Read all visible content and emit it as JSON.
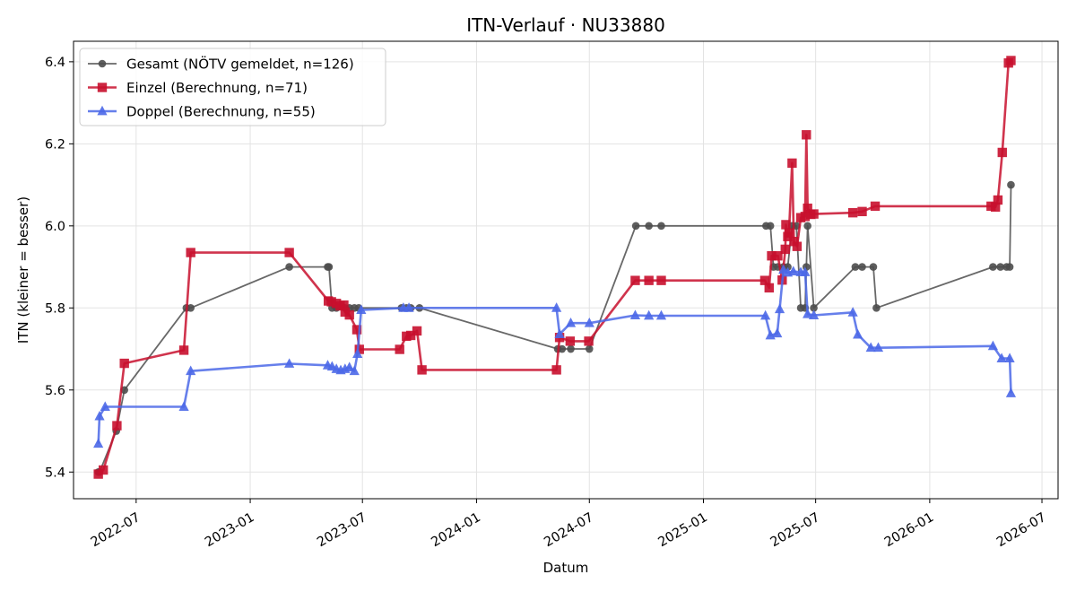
{
  "chart_data": {
    "type": "line",
    "title": "ITN-Verlauf · NU33880",
    "xlabel": "Datum",
    "ylabel": "ITN  (kleiner = besser)",
    "x_axis_type": "date",
    "xlim": [
      "2022-03-22",
      "2026-07-27"
    ],
    "ylim": [
      5.335,
      6.45
    ],
    "x_ticks": [
      "2022-07-01",
      "2023-01-01",
      "2023-07-01",
      "2024-01-01",
      "2024-07-01",
      "2025-01-01",
      "2025-07-01",
      "2026-01-01",
      "2026-07-01"
    ],
    "x_tick_labels": [
      "2022-07",
      "2023-01",
      "2023-07",
      "2024-01",
      "2024-07",
      "2025-01",
      "2025-07",
      "2026-01",
      "2026-07"
    ],
    "y_ticks": [
      5.4,
      5.6,
      5.8,
      6.0,
      6.2,
      6.4
    ],
    "y_tick_labels": [
      "5.4",
      "5.6",
      "5.8",
      "6.0",
      "6.2",
      "6.4"
    ],
    "grid": true,
    "legend_position": "top-left",
    "series": [
      {
        "name": "Gesamt (NÖTV gemeldet, n=126)",
        "color": "#4d4d4d",
        "marker": "circle",
        "line_width": 1.8,
        "points": [
          [
            "2022-05-01",
            5.4
          ],
          [
            "2022-05-03",
            5.4
          ],
          [
            "2022-05-30",
            5.5
          ],
          [
            "2022-06-12",
            5.6
          ],
          [
            "2022-09-20",
            5.8
          ],
          [
            "2022-09-27",
            5.8
          ],
          [
            "2023-03-05",
            5.9
          ],
          [
            "2023-05-06",
            5.9
          ],
          [
            "2023-05-08",
            5.9
          ],
          [
            "2023-05-13",
            5.8
          ],
          [
            "2023-05-20",
            5.8
          ],
          [
            "2023-06-03",
            5.8
          ],
          [
            "2023-06-10",
            5.8
          ],
          [
            "2023-06-18",
            5.8
          ],
          [
            "2023-06-25",
            5.8
          ],
          [
            "2023-09-02",
            5.8
          ],
          [
            "2023-09-10",
            5.8
          ],
          [
            "2023-09-17",
            5.8
          ],
          [
            "2023-10-01",
            5.8
          ],
          [
            "2024-05-11",
            5.7
          ],
          [
            "2024-05-18",
            5.7
          ],
          [
            "2024-06-01",
            5.7
          ],
          [
            "2024-07-01",
            5.7
          ],
          [
            "2024-09-14",
            6.0
          ],
          [
            "2024-10-05",
            6.0
          ],
          [
            "2024-10-25",
            6.0
          ],
          [
            "2025-04-12",
            6.0
          ],
          [
            "2025-04-19",
            6.0
          ],
          [
            "2025-04-24",
            5.9
          ],
          [
            "2025-05-01",
            5.9
          ],
          [
            "2025-05-10",
            5.9
          ],
          [
            "2025-05-17",
            5.9
          ],
          [
            "2025-05-24",
            6.0
          ],
          [
            "2025-05-31",
            6.0
          ],
          [
            "2025-06-07",
            5.8
          ],
          [
            "2025-06-14",
            5.8
          ],
          [
            "2025-06-16",
            5.9
          ],
          [
            "2025-06-18",
            6.0
          ],
          [
            "2025-06-28",
            5.8
          ],
          [
            "2025-09-03",
            5.9
          ],
          [
            "2025-09-14",
            5.9
          ],
          [
            "2025-10-02",
            5.9
          ],
          [
            "2025-10-07",
            5.8
          ],
          [
            "2026-04-13",
            5.9
          ],
          [
            "2026-04-25",
            5.9
          ],
          [
            "2026-05-05",
            5.9
          ],
          [
            "2026-05-10",
            5.9
          ],
          [
            "2026-05-12",
            6.1
          ]
        ]
      },
      {
        "name": "Einzel (Berechnung, n=71)",
        "color": "#c8102e",
        "marker": "square",
        "line_width": 2.6,
        "points": [
          [
            "2022-05-01",
            5.395
          ],
          [
            "2022-05-09",
            5.405
          ],
          [
            "2022-05-31",
            5.513
          ],
          [
            "2022-06-12",
            5.665
          ],
          [
            "2022-09-16",
            5.697
          ],
          [
            "2022-09-27",
            5.935
          ],
          [
            "2023-03-05",
            5.935
          ],
          [
            "2023-05-07",
            5.817
          ],
          [
            "2023-05-12",
            5.815
          ],
          [
            "2023-05-20",
            5.811
          ],
          [
            "2023-05-26",
            5.805
          ],
          [
            "2023-06-01",
            5.807
          ],
          [
            "2023-06-03",
            5.79
          ],
          [
            "2023-06-10",
            5.783
          ],
          [
            "2023-06-22",
            5.747
          ],
          [
            "2023-06-26",
            5.699
          ],
          [
            "2023-08-30",
            5.699
          ],
          [
            "2023-09-10",
            5.731
          ],
          [
            "2023-09-17",
            5.733
          ],
          [
            "2023-09-27",
            5.744
          ],
          [
            "2023-10-05",
            5.649
          ],
          [
            "2024-05-09",
            5.649
          ],
          [
            "2024-05-14",
            5.728
          ],
          [
            "2024-05-31",
            5.719
          ],
          [
            "2024-06-30",
            5.719
          ],
          [
            "2024-09-13",
            5.867
          ],
          [
            "2024-10-05",
            5.867
          ],
          [
            "2024-10-25",
            5.867
          ],
          [
            "2025-04-10",
            5.867
          ],
          [
            "2025-04-17",
            5.849
          ],
          [
            "2025-04-21",
            5.927
          ],
          [
            "2025-05-01",
            5.927
          ],
          [
            "2025-05-08",
            5.868
          ],
          [
            "2025-05-13",
            5.943
          ],
          [
            "2025-05-14",
            6.003
          ],
          [
            "2025-05-17",
            5.974
          ],
          [
            "2025-05-19",
            5.983
          ],
          [
            "2025-05-24",
            6.153
          ],
          [
            "2025-05-27",
            5.962
          ],
          [
            "2025-06-01",
            5.95
          ],
          [
            "2025-06-07",
            6.02
          ],
          [
            "2025-06-14",
            6.023
          ],
          [
            "2025-06-16",
            6.222
          ],
          [
            "2025-06-18",
            6.043
          ],
          [
            "2025-06-23",
            6.028
          ],
          [
            "2025-06-28",
            6.029
          ],
          [
            "2025-08-30",
            6.032
          ],
          [
            "2025-09-14",
            6.035
          ],
          [
            "2025-10-05",
            6.048
          ],
          [
            "2026-04-10",
            6.048
          ],
          [
            "2026-04-17",
            6.046
          ],
          [
            "2026-04-21",
            6.063
          ],
          [
            "2026-04-28",
            6.179
          ],
          [
            "2026-05-08",
            6.397
          ],
          [
            "2026-05-12",
            6.403
          ]
        ]
      },
      {
        "name": "Doppel (Berechnung, n=55)",
        "color": "#4b68e8",
        "marker": "triangle",
        "line_width": 2.6,
        "points": [
          [
            "2022-05-01",
            5.469
          ],
          [
            "2022-05-03",
            5.536
          ],
          [
            "2022-05-12",
            5.559
          ],
          [
            "2022-09-16",
            5.559
          ],
          [
            "2022-09-27",
            5.646
          ],
          [
            "2023-03-05",
            5.664
          ],
          [
            "2023-05-06",
            5.66
          ],
          [
            "2023-05-13",
            5.657
          ],
          [
            "2023-05-20",
            5.651
          ],
          [
            "2023-05-27",
            5.648
          ],
          [
            "2023-06-03",
            5.651
          ],
          [
            "2023-06-10",
            5.655
          ],
          [
            "2023-06-18",
            5.646
          ],
          [
            "2023-06-23",
            5.688
          ],
          [
            "2023-06-29",
            5.795
          ],
          [
            "2023-09-05",
            5.8
          ],
          [
            "2023-09-14",
            5.8
          ],
          [
            "2024-05-09",
            5.8
          ],
          [
            "2024-05-14",
            5.736
          ],
          [
            "2024-06-01",
            5.763
          ],
          [
            "2024-07-01",
            5.763
          ],
          [
            "2024-09-13",
            5.782
          ],
          [
            "2024-10-05",
            5.781
          ],
          [
            "2024-10-25",
            5.781
          ],
          [
            "2025-04-11",
            5.781
          ],
          [
            "2025-04-19",
            5.733
          ],
          [
            "2025-04-30",
            5.738
          ],
          [
            "2025-05-04",
            5.797
          ],
          [
            "2025-05-10",
            5.893
          ],
          [
            "2025-05-17",
            5.886
          ],
          [
            "2025-05-26",
            5.889
          ],
          [
            "2025-06-07",
            5.887
          ],
          [
            "2025-06-14",
            5.887
          ],
          [
            "2025-06-18",
            5.785
          ],
          [
            "2025-06-28",
            5.782
          ],
          [
            "2025-08-30",
            5.789
          ],
          [
            "2025-09-07",
            5.735
          ],
          [
            "2025-09-28",
            5.703
          ],
          [
            "2025-10-10",
            5.703
          ],
          [
            "2026-04-13",
            5.707
          ],
          [
            "2026-04-27",
            5.677
          ],
          [
            "2026-05-10",
            5.677
          ],
          [
            "2026-05-12",
            5.592
          ]
        ]
      }
    ]
  }
}
